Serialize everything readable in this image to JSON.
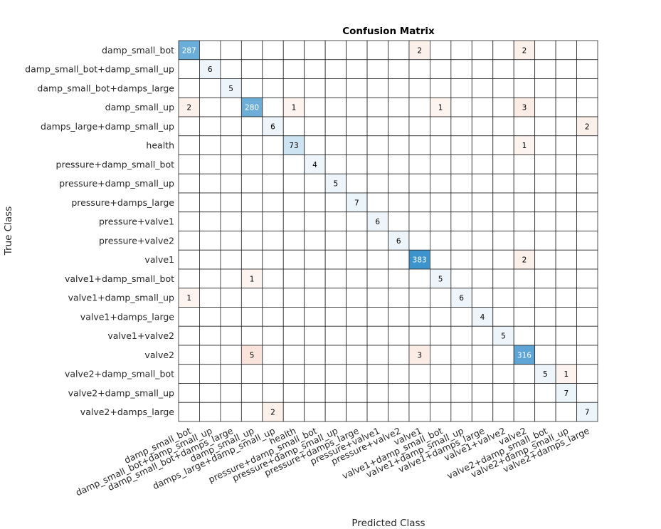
{
  "chart_data": {
    "type": "heatmap",
    "title": "Confusion Matrix",
    "xlabel": "Predicted Class",
    "ylabel": "True Class",
    "classes": [
      "damp_small_bot",
      "damp_small_bot+damp_small_up",
      "damp_small_bot+damps_large",
      "damp_small_up",
      "damps_large+damp_small_up",
      "health",
      "pressure+damp_small_bot",
      "pressure+damp_small_up",
      "pressure+damps_large",
      "pressure+valve1",
      "pressure+valve2",
      "valve1",
      "valve1+damp_small_bot",
      "valve1+damp_small_up",
      "valve1+damps_large",
      "valve1+valve2",
      "valve2",
      "valve2+damp_small_bot",
      "valve2+damp_small_up",
      "valve2+damps_large"
    ],
    "matrix": [
      [
        287,
        0,
        0,
        0,
        0,
        0,
        0,
        0,
        0,
        0,
        0,
        2,
        0,
        0,
        0,
        0,
        2,
        0,
        0,
        0
      ],
      [
        0,
        6,
        0,
        0,
        0,
        0,
        0,
        0,
        0,
        0,
        0,
        0,
        0,
        0,
        0,
        0,
        0,
        0,
        0,
        0
      ],
      [
        0,
        0,
        5,
        0,
        0,
        0,
        0,
        0,
        0,
        0,
        0,
        0,
        0,
        0,
        0,
        0,
        0,
        0,
        0,
        0
      ],
      [
        2,
        0,
        0,
        280,
        0,
        1,
        0,
        0,
        0,
        0,
        0,
        0,
        1,
        0,
        0,
        0,
        3,
        0,
        0,
        0
      ],
      [
        0,
        0,
        0,
        0,
        6,
        0,
        0,
        0,
        0,
        0,
        0,
        0,
        0,
        0,
        0,
        0,
        0,
        0,
        0,
        2
      ],
      [
        0,
        0,
        0,
        0,
        0,
        73,
        0,
        0,
        0,
        0,
        0,
        0,
        0,
        0,
        0,
        0,
        1,
        0,
        0,
        0
      ],
      [
        0,
        0,
        0,
        0,
        0,
        0,
        4,
        0,
        0,
        0,
        0,
        0,
        0,
        0,
        0,
        0,
        0,
        0,
        0,
        0
      ],
      [
        0,
        0,
        0,
        0,
        0,
        0,
        0,
        5,
        0,
        0,
        0,
        0,
        0,
        0,
        0,
        0,
        0,
        0,
        0,
        0
      ],
      [
        0,
        0,
        0,
        0,
        0,
        0,
        0,
        0,
        7,
        0,
        0,
        0,
        0,
        0,
        0,
        0,
        0,
        0,
        0,
        0
      ],
      [
        0,
        0,
        0,
        0,
        0,
        0,
        0,
        0,
        0,
        6,
        0,
        0,
        0,
        0,
        0,
        0,
        0,
        0,
        0,
        0
      ],
      [
        0,
        0,
        0,
        0,
        0,
        0,
        0,
        0,
        0,
        0,
        6,
        0,
        0,
        0,
        0,
        0,
        0,
        0,
        0,
        0
      ],
      [
        0,
        0,
        0,
        0,
        0,
        0,
        0,
        0,
        0,
        0,
        0,
        383,
        0,
        0,
        0,
        0,
        2,
        0,
        0,
        0
      ],
      [
        0,
        0,
        0,
        1,
        0,
        0,
        0,
        0,
        0,
        0,
        0,
        0,
        5,
        0,
        0,
        0,
        0,
        0,
        0,
        0
      ],
      [
        1,
        0,
        0,
        0,
        0,
        0,
        0,
        0,
        0,
        0,
        0,
        0,
        0,
        6,
        0,
        0,
        0,
        0,
        0,
        0
      ],
      [
        0,
        0,
        0,
        0,
        0,
        0,
        0,
        0,
        0,
        0,
        0,
        0,
        0,
        0,
        4,
        0,
        0,
        0,
        0,
        0
      ],
      [
        0,
        0,
        0,
        0,
        0,
        0,
        0,
        0,
        0,
        0,
        0,
        0,
        0,
        0,
        0,
        5,
        0,
        0,
        0,
        0
      ],
      [
        0,
        0,
        0,
        5,
        0,
        0,
        0,
        0,
        0,
        0,
        0,
        3,
        0,
        0,
        0,
        0,
        316,
        0,
        0,
        0
      ],
      [
        0,
        0,
        0,
        0,
        0,
        0,
        0,
        0,
        0,
        0,
        0,
        0,
        0,
        0,
        0,
        0,
        0,
        5,
        1,
        0
      ],
      [
        0,
        0,
        0,
        0,
        0,
        0,
        0,
        0,
        0,
        0,
        0,
        0,
        0,
        0,
        0,
        0,
        0,
        0,
        7,
        0
      ],
      [
        0,
        0,
        0,
        0,
        2,
        0,
        0,
        0,
        0,
        0,
        0,
        0,
        0,
        0,
        0,
        0,
        0,
        0,
        0,
        7
      ]
    ],
    "colors": {
      "diagonal": "#0072bd",
      "off_diagonal": "#d95319",
      "grid": "#262626"
    }
  }
}
